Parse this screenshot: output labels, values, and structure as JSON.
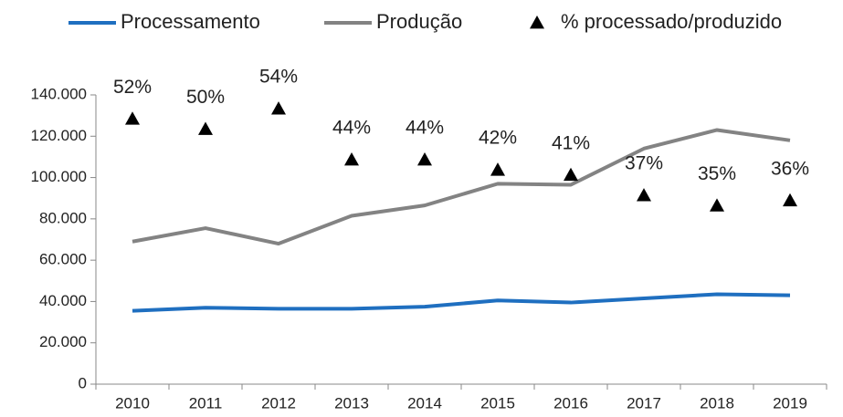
{
  "chart_data": {
    "type": "line",
    "categories": [
      "2010",
      "2011",
      "2012",
      "2013",
      "2014",
      "2015",
      "2016",
      "2017",
      "2018",
      "2019"
    ],
    "series": [
      {
        "name": "Processamento",
        "color": "#1f6fc0",
        "values": [
          35500,
          37000,
          36500,
          36500,
          37500,
          40500,
          39500,
          41500,
          43500,
          43000
        ]
      },
      {
        "name": "Produção",
        "color": "#838383",
        "values": [
          69000,
          75500,
          68000,
          81500,
          86500,
          97000,
          96500,
          114000,
          123000,
          118000
        ]
      },
      {
        "name": "% processado/produzido",
        "color": "#000000",
        "marker": "triangle",
        "axis": "y2",
        "values": [
          52,
          50,
          54,
          44,
          44,
          42,
          41,
          37,
          35,
          36
        ],
        "value_labels": [
          "52%",
          "50%",
          "54%",
          "44%",
          "44%",
          "42%",
          "41%",
          "37%",
          "35%",
          "36%"
        ]
      }
    ],
    "ylim": [
      0,
      140000
    ],
    "yticks": [
      0,
      {
        "value": 20000,
        "label": "20.000"
      },
      {
        "value": 40000,
        "label": "40.000"
      },
      {
        "value": 60000,
        "label": "60.000"
      },
      {
        "value": 80000,
        "label": "80.000"
      },
      {
        "value": 100000,
        "label": "100.000"
      },
      {
        "value": 120000,
        "label": "120.000"
      },
      {
        "value": 140000,
        "label": "140.000"
      }
    ],
    "y2lim": [
      0,
      56.7
    ]
  }
}
